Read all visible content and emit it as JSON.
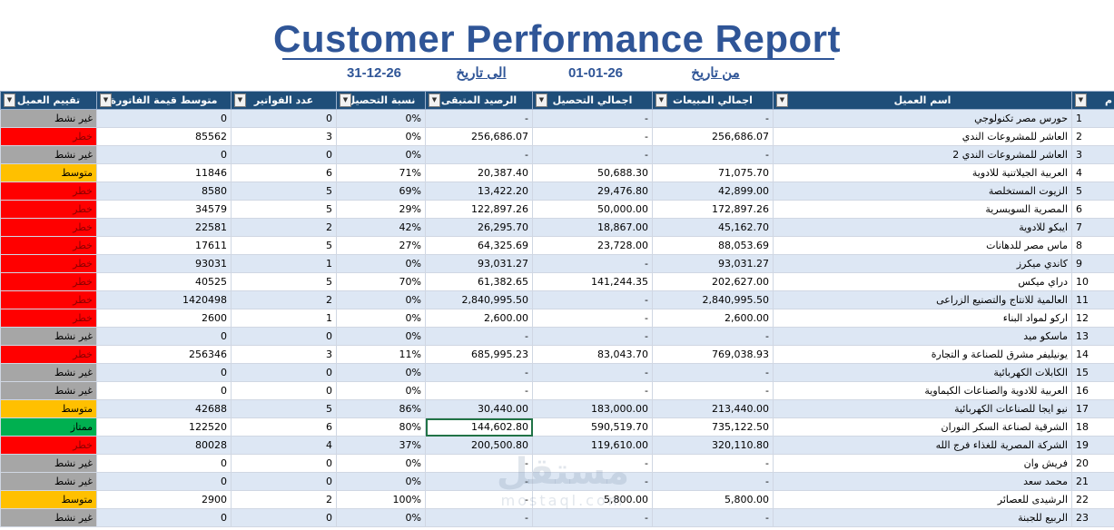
{
  "report": {
    "title": "Customer Performance Report",
    "from_label": "من تاريخ",
    "from_value": "01-01-26",
    "to_label": "الى تاريخ",
    "to_value": "31-12-26"
  },
  "columns": {
    "idx": "م",
    "name": "اسم العميل",
    "sales": "اجمالي المبيعات",
    "collected": "اجمالي التحصيل",
    "balance": "الرصيد المتبقى",
    "ratio": "نسبة التحصيل",
    "invoices": "عدد الفواتير",
    "avg": "متوسط قيمة الفاتورة",
    "rating": "تقييم العميل"
  },
  "filter_icon": "filter-dropdown-icon",
  "rating_colors": {
    "inactive": "#a6a6a6",
    "danger": "#ff0000",
    "medium": "#ffc000",
    "excellent": "#00b050"
  },
  "rows": [
    {
      "idx": "1",
      "name": "حورس مصر تكنولوجي",
      "sales": "-",
      "collected": "-",
      "balance": "-",
      "ratio": "0%",
      "invoices": "0",
      "avg": "0",
      "rating": "غير نشط",
      "level": "inactive"
    },
    {
      "idx": "2",
      "name": "العاشر للمشروعات الندي",
      "sales": "256,686.07",
      "collected": "-",
      "balance": "256,686.07",
      "ratio": "0%",
      "invoices": "3",
      "avg": "85562",
      "rating": "خطر",
      "level": "danger"
    },
    {
      "idx": "3",
      "name": "العاشر للمشروعات الندي 2",
      "sales": "-",
      "collected": "-",
      "balance": "-",
      "ratio": "0%",
      "invoices": "0",
      "avg": "0",
      "rating": "غير نشط",
      "level": "inactive"
    },
    {
      "idx": "4",
      "name": "العربية الجيلاتنية للادوية",
      "sales": "71,075.70",
      "collected": "50,688.30",
      "balance": "20,387.40",
      "ratio": "71%",
      "invoices": "6",
      "avg": "11846",
      "rating": "متوسط",
      "level": "medium"
    },
    {
      "idx": "5",
      "name": "الزيوت المستخلصة",
      "sales": "42,899.00",
      "collected": "29,476.80",
      "balance": "13,422.20",
      "ratio": "69%",
      "invoices": "5",
      "avg": "8580",
      "rating": "خطر",
      "level": "danger"
    },
    {
      "idx": "6",
      "name": "المصرية السويسرية",
      "sales": "172,897.26",
      "collected": "50,000.00",
      "balance": "122,897.26",
      "ratio": "29%",
      "invoices": "5",
      "avg": "34579",
      "rating": "خطر",
      "level": "danger"
    },
    {
      "idx": "7",
      "name": "ايبكو للادوية",
      "sales": "45,162.70",
      "collected": "18,867.00",
      "balance": "26,295.70",
      "ratio": "42%",
      "invoices": "2",
      "avg": "22581",
      "rating": "خطر",
      "level": "danger"
    },
    {
      "idx": "8",
      "name": "ماس مصر للدهانات",
      "sales": "88,053.69",
      "collected": "23,728.00",
      "balance": "64,325.69",
      "ratio": "27%",
      "invoices": "5",
      "avg": "17611",
      "rating": "خطر",
      "level": "danger"
    },
    {
      "idx": "9",
      "name": "كاندي ميكرز",
      "sales": "93,031.27",
      "collected": "-",
      "balance": "93,031.27",
      "ratio": "0%",
      "invoices": "1",
      "avg": "93031",
      "rating": "خطر",
      "level": "danger"
    },
    {
      "idx": "10",
      "name": "دراي ميكس",
      "sales": "202,627.00",
      "collected": "141,244.35",
      "balance": "61,382.65",
      "ratio": "70%",
      "invoices": "5",
      "avg": "40525",
      "rating": "خطر",
      "level": "danger"
    },
    {
      "idx": "11",
      "name": "العالمية للانتاج والتصنيع الزراعى",
      "sales": "2,840,995.50",
      "collected": "-",
      "balance": "2,840,995.50",
      "ratio": "0%",
      "invoices": "2",
      "avg": "1420498",
      "rating": "خطر",
      "level": "danger"
    },
    {
      "idx": "12",
      "name": "اركو لمواد البناء",
      "sales": "2,600.00",
      "collected": "-",
      "balance": "2,600.00",
      "ratio": "0%",
      "invoices": "1",
      "avg": "2600",
      "rating": "خطر",
      "level": "danger"
    },
    {
      "idx": "13",
      "name": "ماسكو ميد",
      "sales": "-",
      "collected": "-",
      "balance": "-",
      "ratio": "0%",
      "invoices": "0",
      "avg": "0",
      "rating": "غير نشط",
      "level": "inactive"
    },
    {
      "idx": "14",
      "name": "يونيليفر مشرق للصناعة و التجارة",
      "sales": "769,038.93",
      "collected": "83,043.70",
      "balance": "685,995.23",
      "ratio": "11%",
      "invoices": "3",
      "avg": "256346",
      "rating": "خطر",
      "level": "danger"
    },
    {
      "idx": "15",
      "name": "الكابلات الكهربائية",
      "sales": "-",
      "collected": "-",
      "balance": "-",
      "ratio": "0%",
      "invoices": "0",
      "avg": "0",
      "rating": "غير نشط",
      "level": "inactive"
    },
    {
      "idx": "16",
      "name": "العربية للادوية والصناعات الكيماوية",
      "sales": "-",
      "collected": "-",
      "balance": "-",
      "ratio": "0%",
      "invoices": "0",
      "avg": "0",
      "rating": "غير نشط",
      "level": "inactive"
    },
    {
      "idx": "17",
      "name": "نيو ايجا للصناعات الكهربائية",
      "sales": "213,440.00",
      "collected": "183,000.00",
      "balance": "30,440.00",
      "ratio": "86%",
      "invoices": "5",
      "avg": "42688",
      "rating": "متوسط",
      "level": "medium"
    },
    {
      "idx": "18",
      "name": "الشرقية لصناعة السكر النوران",
      "sales": "735,122.50",
      "collected": "590,519.70",
      "balance": "144,602.80",
      "ratio": "80%",
      "invoices": "6",
      "avg": "122520",
      "rating": "ممتاز",
      "level": "excellent"
    },
    {
      "idx": "19",
      "name": "الشركة المصرية للغذاء فرج الله",
      "sales": "320,110.80",
      "collected": "119,610.00",
      "balance": "200,500.80",
      "ratio": "37%",
      "invoices": "4",
      "avg": "80028",
      "rating": "خطر",
      "level": "danger"
    },
    {
      "idx": "20",
      "name": "فريش وان",
      "sales": "-",
      "collected": "-",
      "balance": "-",
      "ratio": "0%",
      "invoices": "0",
      "avg": "0",
      "rating": "غير نشط",
      "level": "inactive"
    },
    {
      "idx": "21",
      "name": "محمد سعد",
      "sales": "-",
      "collected": "-",
      "balance": "-",
      "ratio": "0%",
      "invoices": "0",
      "avg": "0",
      "rating": "غير نشط",
      "level": "inactive"
    },
    {
      "idx": "22",
      "name": "الرشيدى للعصائر",
      "sales": "5,800.00",
      "collected": "5,800.00",
      "balance": "-",
      "ratio": "100%",
      "invoices": "2",
      "avg": "2900",
      "rating": "متوسط",
      "level": "medium"
    },
    {
      "idx": "23",
      "name": "الربيع للجبنة",
      "sales": "-",
      "collected": "-",
      "balance": "-",
      "ratio": "0%",
      "invoices": "0",
      "avg": "0",
      "rating": "غير نشط",
      "level": "inactive"
    }
  ],
  "watermark": {
    "arabic": "مستقل",
    "latin": "mostaql.com"
  }
}
